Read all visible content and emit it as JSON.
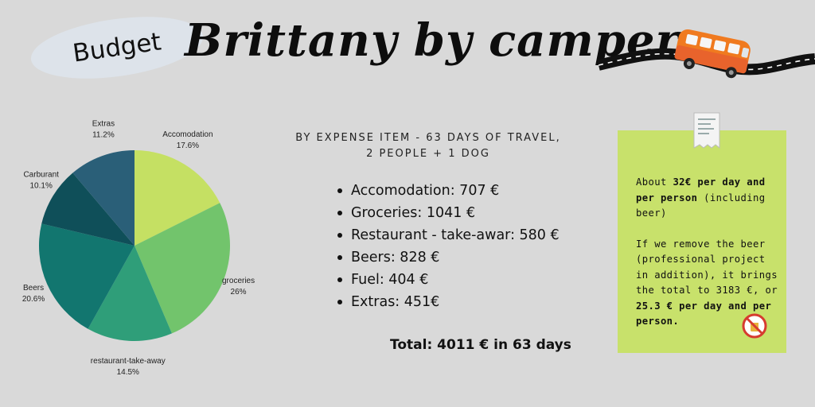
{
  "header": {
    "badge": "Budget",
    "title": "Brittany by camper"
  },
  "subtitle": "By expense item - 63 days of travel, 2 people + 1 dog",
  "items": [
    "Accomodation: 707 €",
    "Groceries: 1041 €",
    "Restaurant - take-awar: 580 €",
    "Beers: 828 €",
    "Fuel: 404 €",
    "Extras: 451€"
  ],
  "total": "Total: 4011 € in 63 days",
  "note": {
    "p1_a": "About ",
    "p1_b": "32€ per day and per person",
    "p1_c": " (including beer)",
    "p2_a": "If we remove the beer (professional project in addition), it brings the total to 3183 €, or ",
    "p2_b": "25.3 € per day and per person."
  },
  "colors": {
    "accomodation": "#c5e063",
    "groceries": "#72c46c",
    "restaurant": "#2f9e79",
    "beers": "#12766f",
    "carburant": "#0f4f59",
    "extras": "#2a5f78",
    "note": "#c8e16b",
    "van": "#f07a1f"
  },
  "icons": [
    "camper-van-icon",
    "road-icon",
    "receipt-icon",
    "no-beer-icon"
  ],
  "chart_data": {
    "type": "pie",
    "slices": [
      {
        "label": "Accomodation",
        "value": 17.6,
        "pct": "17.6%",
        "color": "#c5e063"
      },
      {
        "label": "groceries",
        "value": 26,
        "pct": "26%",
        "color": "#72c46c"
      },
      {
        "label": "restaurant-take-away",
        "value": 14.5,
        "pct": "14.5%",
        "color": "#2f9e79"
      },
      {
        "label": "Beers",
        "value": 20.6,
        "pct": "20.6%",
        "color": "#12766f"
      },
      {
        "label": "Carburant",
        "value": 10.1,
        "pct": "10.1%",
        "color": "#0f4f59"
      },
      {
        "label": "Extras",
        "value": 11.2,
        "pct": "11.2%",
        "color": "#2a5f78"
      }
    ],
    "start": "top, clockwise",
    "legend": "labels outside slices"
  }
}
